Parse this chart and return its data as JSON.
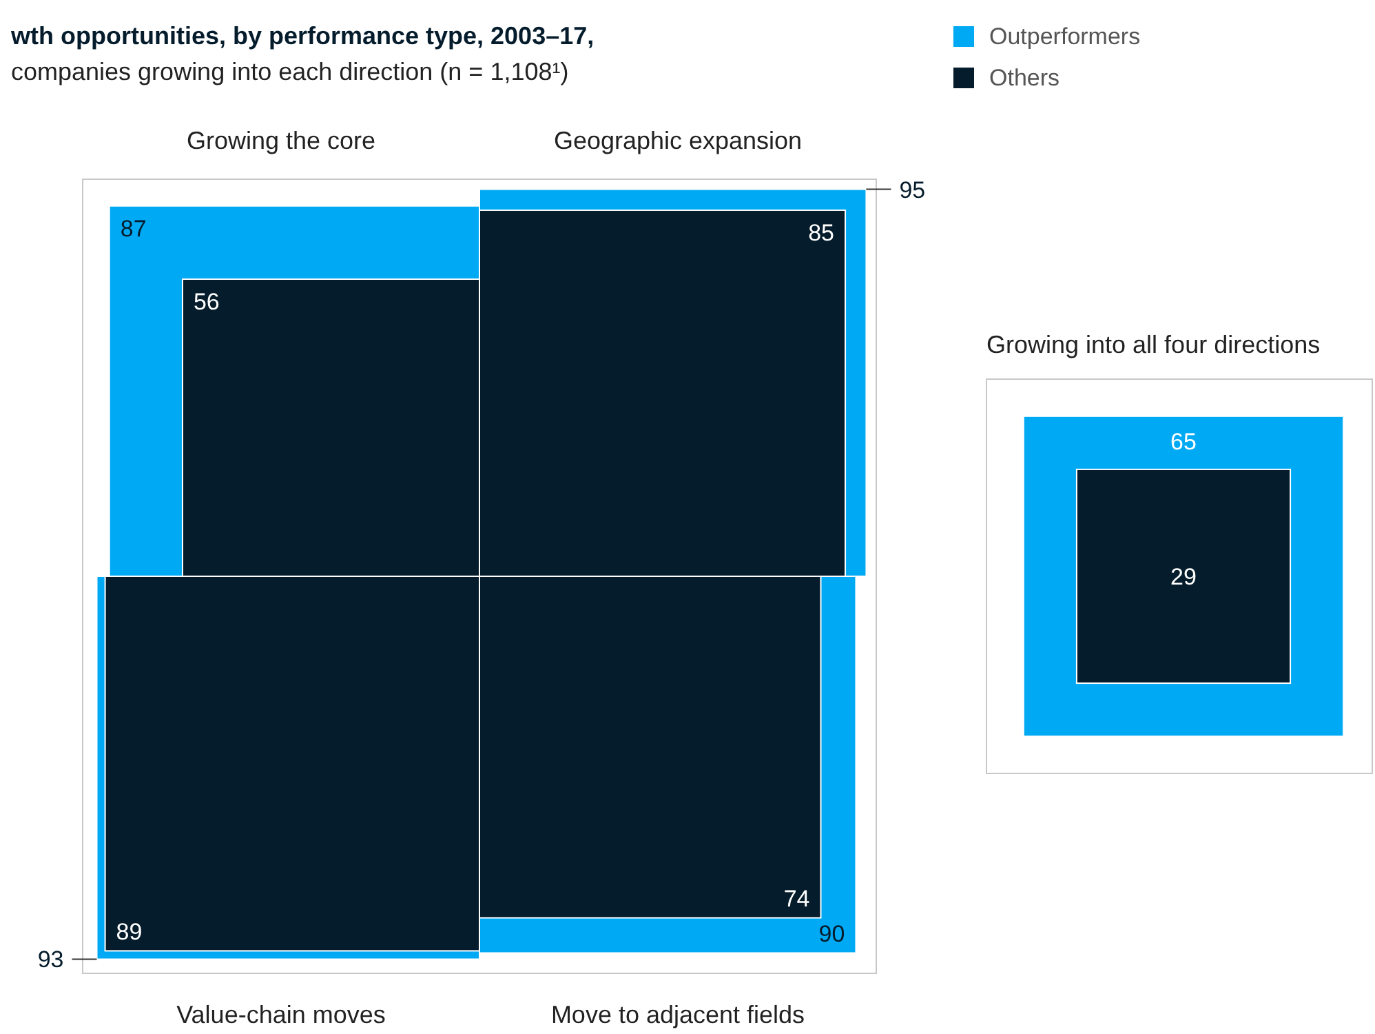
{
  "chart_data": {
    "type": "other",
    "title": "wth opportunities, by performance type, 2003–17,",
    "subtitle": "companies growing into each direction (n = 1,108¹)",
    "categories": [
      "Growing the core",
      "Geographic expansion",
      "Value-chain moves",
      "Move to adjacent fields",
      "Growing into all four directions"
    ],
    "series": [
      {
        "name": "Outperformers",
        "color": "#00a9f4",
        "values": [
          87,
          95,
          93,
          90,
          65
        ]
      },
      {
        "name": "Others",
        "color": "#051c2c",
        "values": [
          56,
          85,
          89,
          74,
          29
        ]
      }
    ],
    "data_labels": true,
    "legend": "top right"
  }
}
